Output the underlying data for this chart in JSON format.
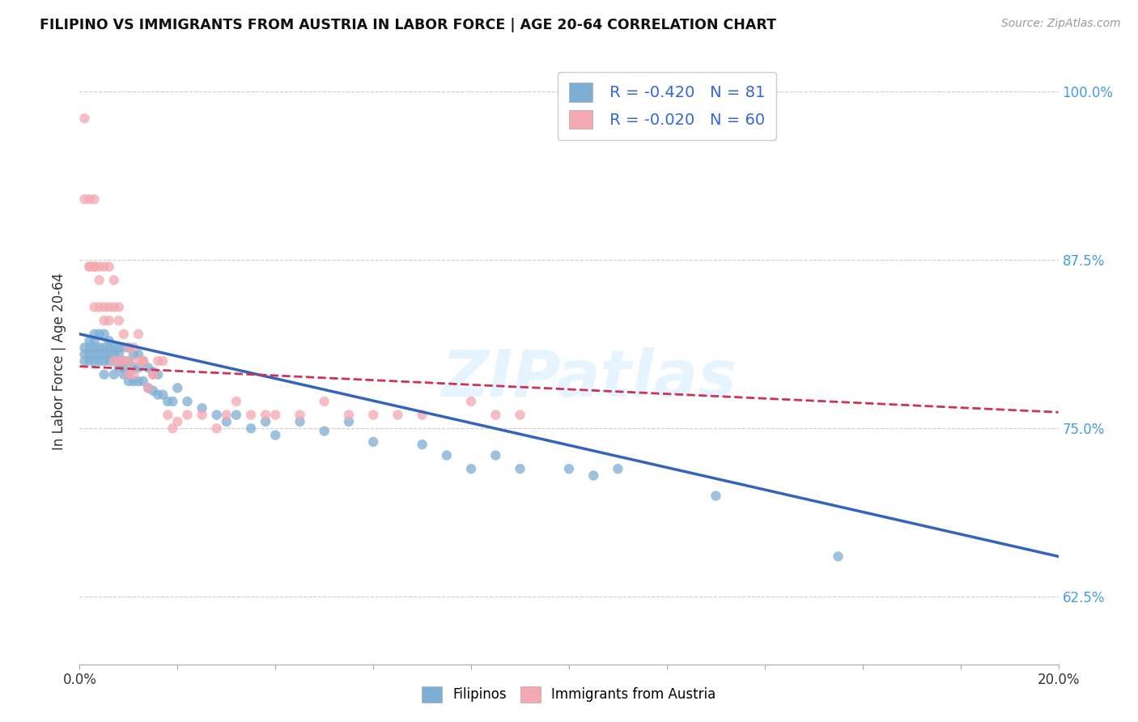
{
  "title": "FILIPINO VS IMMIGRANTS FROM AUSTRIA IN LABOR FORCE | AGE 20-64 CORRELATION CHART",
  "source": "Source: ZipAtlas.com",
  "ylabel": "In Labor Force | Age 20-64",
  "xlim": [
    0.0,
    0.2
  ],
  "ylim": [
    0.575,
    1.025
  ],
  "xticks": [
    0.0,
    0.02,
    0.04,
    0.06,
    0.08,
    0.1,
    0.12,
    0.14,
    0.16,
    0.18,
    0.2
  ],
  "xticklabels": [
    "0.0%",
    "",
    "",
    "",
    "",
    "",
    "",
    "",
    "",
    "",
    "20.0%"
  ],
  "yticks": [
    0.625,
    0.75,
    0.875,
    1.0
  ],
  "yticklabels": [
    "62.5%",
    "75.0%",
    "87.5%",
    "100.0%"
  ],
  "blue_color": "#7EAED4",
  "pink_color": "#F4A8B0",
  "blue_line_color": "#3366BB",
  "pink_line_color": "#CC3355",
  "legend_blue_R": "-0.420",
  "legend_blue_N": "81",
  "legend_pink_R": "-0.020",
  "legend_pink_N": "60",
  "legend_label_blue": "Filipinos",
  "legend_label_pink": "Immigrants from Austria",
  "watermark": "ZIPatlas",
  "blue_scatter_x": [
    0.001,
    0.001,
    0.001,
    0.002,
    0.002,
    0.002,
    0.002,
    0.003,
    0.003,
    0.003,
    0.003,
    0.003,
    0.004,
    0.004,
    0.004,
    0.004,
    0.005,
    0.005,
    0.005,
    0.005,
    0.005,
    0.006,
    0.006,
    0.006,
    0.006,
    0.007,
    0.007,
    0.007,
    0.007,
    0.008,
    0.008,
    0.008,
    0.008,
    0.009,
    0.009,
    0.009,
    0.009,
    0.01,
    0.01,
    0.01,
    0.01,
    0.011,
    0.011,
    0.011,
    0.012,
    0.012,
    0.012,
    0.013,
    0.013,
    0.014,
    0.014,
    0.015,
    0.015,
    0.016,
    0.016,
    0.017,
    0.018,
    0.019,
    0.02,
    0.022,
    0.025,
    0.028,
    0.03,
    0.032,
    0.035,
    0.038,
    0.04,
    0.045,
    0.05,
    0.055,
    0.06,
    0.07,
    0.075,
    0.08,
    0.085,
    0.09,
    0.1,
    0.105,
    0.11,
    0.13,
    0.155
  ],
  "blue_scatter_y": [
    0.8,
    0.805,
    0.81,
    0.8,
    0.805,
    0.81,
    0.815,
    0.8,
    0.805,
    0.81,
    0.815,
    0.82,
    0.8,
    0.805,
    0.81,
    0.82,
    0.79,
    0.8,
    0.805,
    0.81,
    0.82,
    0.8,
    0.805,
    0.81,
    0.815,
    0.79,
    0.8,
    0.805,
    0.81,
    0.795,
    0.8,
    0.805,
    0.81,
    0.79,
    0.795,
    0.8,
    0.81,
    0.785,
    0.79,
    0.8,
    0.81,
    0.785,
    0.795,
    0.805,
    0.785,
    0.795,
    0.805,
    0.785,
    0.8,
    0.78,
    0.795,
    0.778,
    0.792,
    0.775,
    0.79,
    0.775,
    0.77,
    0.77,
    0.78,
    0.77,
    0.765,
    0.76,
    0.755,
    0.76,
    0.75,
    0.755,
    0.745,
    0.755,
    0.748,
    0.755,
    0.74,
    0.738,
    0.73,
    0.72,
    0.73,
    0.72,
    0.72,
    0.715,
    0.72,
    0.7,
    0.655
  ],
  "pink_scatter_x": [
    0.001,
    0.001,
    0.002,
    0.002,
    0.002,
    0.003,
    0.003,
    0.003,
    0.003,
    0.004,
    0.004,
    0.004,
    0.005,
    0.005,
    0.005,
    0.006,
    0.006,
    0.006,
    0.007,
    0.007,
    0.007,
    0.008,
    0.008,
    0.008,
    0.009,
    0.009,
    0.01,
    0.01,
    0.01,
    0.011,
    0.011,
    0.012,
    0.012,
    0.013,
    0.013,
    0.014,
    0.015,
    0.015,
    0.016,
    0.017,
    0.018,
    0.019,
    0.02,
    0.022,
    0.025,
    0.028,
    0.03,
    0.032,
    0.035,
    0.038,
    0.04,
    0.045,
    0.05,
    0.055,
    0.06,
    0.065,
    0.07,
    0.08,
    0.085,
    0.09
  ],
  "pink_scatter_y": [
    0.98,
    0.92,
    0.87,
    0.92,
    0.87,
    0.92,
    0.87,
    0.84,
    0.87,
    0.84,
    0.86,
    0.87,
    0.84,
    0.83,
    0.87,
    0.83,
    0.84,
    0.87,
    0.84,
    0.8,
    0.86,
    0.84,
    0.8,
    0.83,
    0.82,
    0.8,
    0.8,
    0.81,
    0.79,
    0.81,
    0.79,
    0.8,
    0.82,
    0.8,
    0.8,
    0.78,
    0.79,
    0.79,
    0.8,
    0.8,
    0.76,
    0.75,
    0.755,
    0.76,
    0.76,
    0.75,
    0.76,
    0.77,
    0.76,
    0.76,
    0.76,
    0.76,
    0.77,
    0.76,
    0.76,
    0.76,
    0.76,
    0.77,
    0.76,
    0.76
  ],
  "blue_trend_x": [
    0.0,
    0.2
  ],
  "blue_trend_y": [
    0.82,
    0.655
  ],
  "pink_trend_x": [
    0.0,
    0.2
  ],
  "pink_trend_y": [
    0.796,
    0.762
  ]
}
